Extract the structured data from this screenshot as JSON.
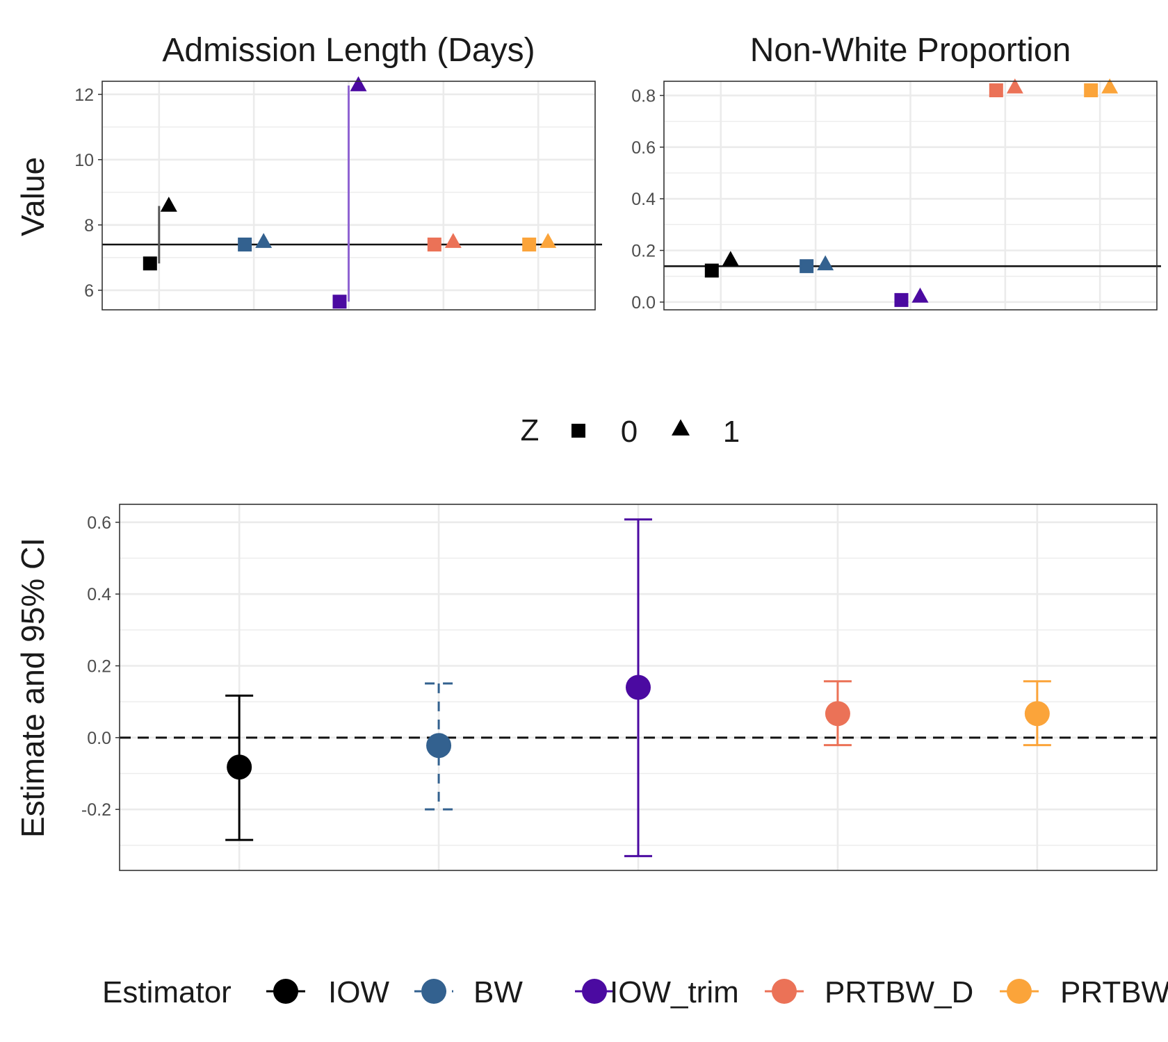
{
  "chart_data": [
    {
      "type": "scatter",
      "title": "Admission Length (Days)",
      "ylabel": "Value",
      "ylim": [
        5.4,
        12.4
      ],
      "yticks": [
        6,
        8,
        10,
        12
      ],
      "reference_line": 7.4,
      "categories": [
        "IOW",
        "BW",
        "IOW_trim",
        "PRTBW_D",
        "PRTBW"
      ],
      "series": [
        {
          "name": "0",
          "marker": "square",
          "values": [
            6.82,
            7.4,
            5.65,
            7.4,
            7.4
          ]
        },
        {
          "name": "1",
          "marker": "triangle",
          "values": [
            8.58,
            7.47,
            12.27,
            7.47,
            7.47
          ]
        }
      ]
    },
    {
      "type": "scatter",
      "title": "Non-White Proportion",
      "ylabel": "",
      "ylim": [
        -0.03,
        0.855
      ],
      "yticks": [
        0.0,
        0.2,
        0.4,
        0.6,
        0.8
      ],
      "reference_line": 0.139,
      "categories": [
        "IOW",
        "BW",
        "IOW_trim",
        "PRTBW_D",
        "PRTBW"
      ],
      "series": [
        {
          "name": "0",
          "marker": "square",
          "values": [
            0.122,
            0.139,
            0.008,
            0.82,
            0.82
          ]
        },
        {
          "name": "1",
          "marker": "triangle",
          "values": [
            0.162,
            0.145,
            0.02,
            0.83,
            0.83
          ]
        }
      ]
    },
    {
      "type": "errorbar",
      "title": "",
      "ylabel": "Estimate and 95% CI",
      "ylim": [
        -0.37,
        0.65
      ],
      "yticks": [
        -0.2,
        0.0,
        0.2,
        0.4,
        0.6
      ],
      "yticklabels": [
        "-0.2",
        "0.0",
        "0.2",
        "0.4",
        "0.6"
      ],
      "reference_line": 0.0,
      "categories": [
        "IOW",
        "BW",
        "IOW_trim",
        "PRTBW_D",
        "PRTBW"
      ],
      "estimates": [
        -0.082,
        -0.022,
        0.14,
        0.067,
        0.067
      ],
      "lower": [
        -0.285,
        -0.2,
        -0.33,
        -0.021,
        -0.021
      ],
      "upper": [
        0.117,
        0.151,
        0.608,
        0.157,
        0.157
      ]
    }
  ],
  "shape_legend": {
    "title": "Z",
    "items": [
      "0",
      "1"
    ]
  },
  "estimator_legend": {
    "title": "Estimator",
    "items": [
      "IOW",
      "BW",
      "IOW_trim",
      "PRTBW_D",
      "PRTBW"
    ]
  },
  "colors": {
    "IOW": "#000000",
    "BW": "#33618f",
    "IOW_trim": "#4b0aa1",
    "PRTBW_D": "#eb7257",
    "PRTBW": "#fba43a",
    "trim_segment": "#8f64d2",
    "iow_segment": "#555555",
    "grid": "#ebebeb",
    "axis_text": "#4d4d4d"
  }
}
